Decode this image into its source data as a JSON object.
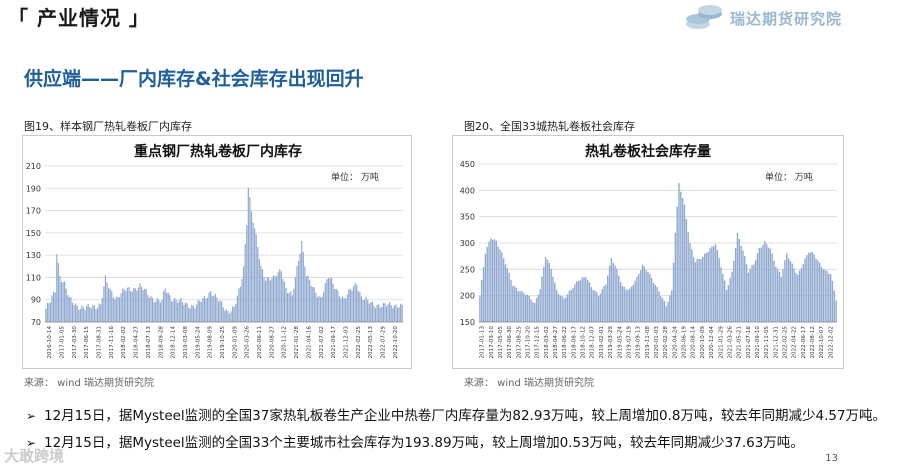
{
  "header": {
    "section_title": "「 产业情况 」",
    "brand": "瑞达期货研究院"
  },
  "subtitle": "供应端——厂内库存&社会库存出现回升",
  "chart_data": [
    {
      "type": "bar",
      "caption": "图19、样本钢厂热轧卷板厂内库存",
      "title": "重点钢厂热轧卷板厂内库存",
      "unit_label": "单位：  万吨",
      "ylim": [
        70,
        210
      ],
      "yticks": [
        70,
        90,
        110,
        130,
        150,
        170,
        190,
        210
      ],
      "grid": true,
      "xtick_labels": [
        "2016-10-14",
        "2017-01-05",
        "2017-03-30",
        "2017-06-15",
        "2017-08-31",
        "2017-11-16",
        "2018-02-02",
        "2018-04-27",
        "2018-07-13",
        "2018-09-28",
        "2018-12-14",
        "2019-03-08",
        "2019-05-24",
        "2019-08-09",
        "2019-10-25",
        "2020-01-09",
        "2020-03-26",
        "2020-06-11",
        "2020-08-27",
        "2020-11-12",
        "2021-01-28",
        "2021-04-16",
        "2021-07-02",
        "2021-09-17",
        "2021-12-03",
        "2022-02-25",
        "2022-05-13",
        "2022-07-29",
        "2022-10-20"
      ],
      "series": [
        {
          "color": "#8fa8d0",
          "keypoints": [
            [
              0,
              82
            ],
            [
              3,
              88
            ],
            [
              6,
              98
            ],
            [
              7,
              133
            ],
            [
              9,
              112
            ],
            [
              12,
              104
            ],
            [
              15,
              90
            ],
            [
              20,
              85
            ],
            [
              25,
              82
            ],
            [
              30,
              84
            ],
            [
              35,
              86
            ],
            [
              38,
              108
            ],
            [
              41,
              98
            ],
            [
              45,
              92
            ],
            [
              50,
              98
            ],
            [
              55,
              100
            ],
            [
              60,
              102
            ],
            [
              65,
              95
            ],
            [
              70,
              90
            ],
            [
              74,
              88
            ],
            [
              76,
              100
            ],
            [
              80,
              92
            ],
            [
              85,
              88
            ],
            [
              90,
              86
            ],
            [
              95,
              84
            ],
            [
              100,
              90
            ],
            [
              105,
              98
            ],
            [
              108,
              92
            ],
            [
              112,
              86
            ],
            [
              116,
              80
            ],
            [
              120,
              82
            ],
            [
              124,
              102
            ],
            [
              126,
              120
            ],
            [
              128,
              160
            ],
            [
              129,
              193
            ],
            [
              131,
              168
            ],
            [
              134,
              145
            ],
            [
              137,
              120
            ],
            [
              140,
              110
            ],
            [
              145,
              108
            ],
            [
              150,
              118
            ],
            [
              153,
              100
            ],
            [
              157,
              92
            ],
            [
              160,
              118
            ],
            [
              163,
              143
            ],
            [
              166,
              112
            ],
            [
              170,
              100
            ],
            [
              175,
              92
            ],
            [
              180,
              110
            ],
            [
              185,
              100
            ],
            [
              190,
              90
            ],
            [
              195,
              100
            ],
            [
              198,
              106
            ],
            [
              201,
              92
            ],
            [
              205,
              88
            ],
            [
              210,
              86
            ],
            [
              215,
              84
            ],
            [
              220,
              86
            ],
            [
              225,
              85
            ],
            [
              227,
              83
            ]
          ]
        }
      ]
    },
    {
      "type": "bar",
      "caption": "图20、全国33城热轧卷板社会库存",
      "title": "热轧卷板社会库存量",
      "unit_label": "单位：  万吨",
      "ylim": [
        150,
        450
      ],
      "yticks": [
        150,
        200,
        250,
        300,
        350,
        400,
        450
      ],
      "grid": true,
      "xtick_labels": [
        "2017-01-13",
        "2017-03-10",
        "2017-05-05",
        "2017-06-30",
        "2017-08-25",
        "2017-10-20",
        "2017-12-15",
        "2018-03-02",
        "2018-04-27",
        "2018-06-22",
        "2018-08-17",
        "2018-10-12",
        "2018-12-07",
        "2019-02-01",
        "2019-03-29",
        "2019-05-24",
        "2019-07-19",
        "2019-09-13",
        "2019-11-08",
        "2020-01-03",
        "2020-02-28",
        "2020-04-24",
        "2020-06-19",
        "2020-08-14",
        "2020-10-09",
        "2020-12-04",
        "2021-01-29",
        "2021-03-26",
        "2021-05-21",
        "2021-07-16",
        "2021-09-10",
        "2021-11-05",
        "2021-12-31",
        "2022-02-25",
        "2022-04-22",
        "2022-06-17",
        "2022-08-12",
        "2022-10-07",
        "2022-12-02"
      ],
      "series": [
        {
          "color": "#8fa8d0",
          "keypoints": [
            [
              0,
              200
            ],
            [
              3,
              280
            ],
            [
              6,
              310
            ],
            [
              9,
              305
            ],
            [
              12,
              280
            ],
            [
              15,
              250
            ],
            [
              18,
              220
            ],
            [
              22,
              210
            ],
            [
              26,
              200
            ],
            [
              30,
              185
            ],
            [
              33,
              215
            ],
            [
              36,
              275
            ],
            [
              39,
              250
            ],
            [
              42,
              210
            ],
            [
              46,
              195
            ],
            [
              50,
              210
            ],
            [
              54,
              230
            ],
            [
              58,
              238
            ],
            [
              61,
              215
            ],
            [
              65,
              200
            ],
            [
              69,
              225
            ],
            [
              72,
              270
            ],
            [
              75,
              248
            ],
            [
              78,
              218
            ],
            [
              82,
              212
            ],
            [
              86,
              232
            ],
            [
              89,
              258
            ],
            [
              92,
              248
            ],
            [
              95,
              226
            ],
            [
              99,
              200
            ],
            [
              102,
              182
            ],
            [
              105,
              210
            ],
            [
              107,
              320
            ],
            [
              109,
              412
            ],
            [
              112,
              370
            ],
            [
              115,
              300
            ],
            [
              118,
              265
            ],
            [
              122,
              272
            ],
            [
              126,
              290
            ],
            [
              129,
              300
            ],
            [
              132,
              255
            ],
            [
              135,
              210
            ],
            [
              138,
              245
            ],
            [
              141,
              318
            ],
            [
              144,
              285
            ],
            [
              147,
              245
            ],
            [
              150,
              262
            ],
            [
              153,
              290
            ],
            [
              156,
              300
            ],
            [
              159,
              288
            ],
            [
              162,
              258
            ],
            [
              165,
              238
            ],
            [
              168,
              278
            ],
            [
              171,
              258
            ],
            [
              174,
              240
            ],
            [
              177,
              262
            ],
            [
              180,
              282
            ],
            [
              183,
              278
            ],
            [
              186,
              262
            ],
            [
              189,
              248
            ],
            [
              192,
              240
            ],
            [
              195,
              193
            ]
          ]
        }
      ]
    }
  ],
  "figures": {
    "left_source": "来源： wind   瑞达期货研究院",
    "right_source": "来源： wind   瑞达期货研究院"
  },
  "bullets": [
    "12月15日，据Mysteel监测的全国37家热轧板卷生产企业中热卷厂内库存量为82.93万吨，较上周增加0.8万吨，较去年同期减少4.57万吨。",
    "12月15日，据Mysteel监测的全国33个主要城市社会库存为193.89万吨，较上周增加0.53万吨，较去年同期减少37.63万吨。"
  ],
  "page_number": "13",
  "watermark": "大敢跨境"
}
